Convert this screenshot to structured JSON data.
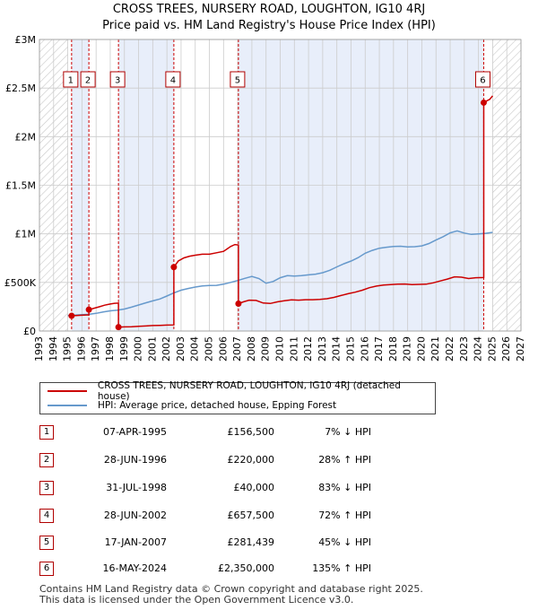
{
  "chart_data": {
    "type": "line",
    "title": "CROSS TREES, NURSERY ROAD, LOUGHTON, IG10 4RJ",
    "subtitle": "Price paid vs. HM Land Registry's House Price Index (HPI)",
    "xlim": [
      1993,
      2027
    ],
    "ylim": [
      0,
      3000000
    ],
    "x_ticks": [
      "1993",
      "1994",
      "1995",
      "1996",
      "1997",
      "1998",
      "1999",
      "2000",
      "2001",
      "2002",
      "2003",
      "2004",
      "2005",
      "2006",
      "2007",
      "2008",
      "2009",
      "2010",
      "2011",
      "2012",
      "2013",
      "2014",
      "2015",
      "2016",
      "2017",
      "2018",
      "2019",
      "2020",
      "2021",
      "2022",
      "2023",
      "2024",
      "2025",
      "2026",
      "2027"
    ],
    "y_ticks": [
      {
        "value": 0,
        "label": "£0"
      },
      {
        "value": 500000,
        "label": "£500K"
      },
      {
        "value": 1000000,
        "label": "£1M"
      },
      {
        "value": 1500000,
        "label": "£1.5M"
      },
      {
        "value": 2000000,
        "label": "£2M"
      },
      {
        "value": 2500000,
        "label": "£2.5M"
      },
      {
        "value": 3000000,
        "label": "£3M"
      }
    ],
    "grid": true,
    "hatched_before": 1995.0,
    "hatched_after": 2025.0,
    "series": [
      {
        "name": "CROSS TREES, NURSERY ROAD, LOUGHTON, IG10 4RJ (detached house)",
        "color": "#cc0000",
        "points": [
          [
            1995.27,
            156500
          ],
          [
            1995.6,
            160000
          ],
          [
            1996.0,
            162000
          ],
          [
            1996.3,
            165000
          ],
          [
            1996.49,
            165000
          ],
          [
            1996.49,
            220000
          ],
          [
            1996.8,
            232000
          ],
          [
            1997.2,
            248000
          ],
          [
            1997.6,
            266000
          ],
          [
            1998.0,
            278000
          ],
          [
            1998.3,
            285000
          ],
          [
            1998.58,
            287000
          ],
          [
            1998.58,
            40000
          ],
          [
            1999.0,
            42000
          ],
          [
            1999.5,
            44000
          ],
          [
            2000.0,
            48000
          ],
          [
            2000.5,
            52000
          ],
          [
            2001.0,
            56000
          ],
          [
            2001.5,
            58000
          ],
          [
            2002.0,
            61000
          ],
          [
            2002.49,
            63000
          ],
          [
            2002.49,
            657500
          ],
          [
            2002.8,
            720000
          ],
          [
            2003.2,
            752000
          ],
          [
            2003.6,
            770000
          ],
          [
            2004.0,
            780000
          ],
          [
            2004.5,
            790000
          ],
          [
            2005.0,
            790000
          ],
          [
            2005.5,
            805000
          ],
          [
            2006.0,
            820000
          ],
          [
            2006.5,
            870000
          ],
          [
            2006.8,
            890000
          ],
          [
            2007.05,
            885000
          ],
          [
            2007.05,
            281439
          ],
          [
            2007.4,
            300000
          ],
          [
            2007.8,
            318000
          ],
          [
            2008.3,
            315000
          ],
          [
            2008.8,
            288000
          ],
          [
            2009.3,
            283000
          ],
          [
            2009.8,
            300000
          ],
          [
            2010.3,
            312000
          ],
          [
            2010.8,
            320000
          ],
          [
            2011.3,
            318000
          ],
          [
            2011.8,
            322000
          ],
          [
            2012.3,
            322000
          ],
          [
            2012.8,
            326000
          ],
          [
            2013.3,
            332000
          ],
          [
            2013.8,
            346000
          ],
          [
            2014.3,
            366000
          ],
          [
            2014.8,
            384000
          ],
          [
            2015.3,
            400000
          ],
          [
            2015.8,
            420000
          ],
          [
            2016.3,
            446000
          ],
          [
            2016.8,
            462000
          ],
          [
            2017.3,
            473000
          ],
          [
            2017.8,
            478000
          ],
          [
            2018.3,
            482000
          ],
          [
            2018.8,
            484000
          ],
          [
            2019.3,
            478000
          ],
          [
            2019.8,
            480000
          ],
          [
            2020.3,
            482000
          ],
          [
            2020.8,
            496000
          ],
          [
            2021.3,
            515000
          ],
          [
            2021.8,
            534000
          ],
          [
            2022.3,
            558000
          ],
          [
            2022.8,
            554000
          ],
          [
            2023.3,
            540000
          ],
          [
            2023.8,
            548000
          ],
          [
            2024.37,
            550000
          ],
          [
            2024.37,
            2350000
          ],
          [
            2024.6,
            2370000
          ],
          [
            2024.8,
            2385000
          ],
          [
            2025.0,
            2420000
          ]
        ]
      },
      {
        "name": "HPI: Average price, detached house, Epping Forest",
        "color": "#6699cc",
        "points": [
          [
            1995.0,
            160000
          ],
          [
            1995.5,
            163000
          ],
          [
            1996.0,
            168000
          ],
          [
            1996.5,
            172000
          ],
          [
            1997.0,
            182000
          ],
          [
            1997.5,
            196000
          ],
          [
            1998.0,
            208000
          ],
          [
            1998.5,
            215000
          ],
          [
            1999.0,
            226000
          ],
          [
            1999.5,
            246000
          ],
          [
            2000.0,
            268000
          ],
          [
            2000.5,
            290000
          ],
          [
            2001.0,
            310000
          ],
          [
            2001.5,
            330000
          ],
          [
            2002.0,
            360000
          ],
          [
            2002.5,
            392000
          ],
          [
            2003.0,
            420000
          ],
          [
            2003.5,
            438000
          ],
          [
            2004.0,
            452000
          ],
          [
            2004.5,
            464000
          ],
          [
            2005.0,
            468000
          ],
          [
            2005.5,
            470000
          ],
          [
            2006.0,
            482000
          ],
          [
            2006.5,
            500000
          ],
          [
            2007.0,
            520000
          ],
          [
            2007.5,
            542000
          ],
          [
            2008.0,
            562000
          ],
          [
            2008.5,
            540000
          ],
          [
            2009.0,
            492000
          ],
          [
            2009.5,
            510000
          ],
          [
            2010.0,
            548000
          ],
          [
            2010.5,
            570000
          ],
          [
            2011.0,
            566000
          ],
          [
            2011.5,
            570000
          ],
          [
            2012.0,
            578000
          ],
          [
            2012.5,
            585000
          ],
          [
            2013.0,
            600000
          ],
          [
            2013.5,
            625000
          ],
          [
            2014.0,
            660000
          ],
          [
            2014.5,
            692000
          ],
          [
            2015.0,
            720000
          ],
          [
            2015.5,
            755000
          ],
          [
            2016.0,
            800000
          ],
          [
            2016.5,
            830000
          ],
          [
            2017.0,
            852000
          ],
          [
            2017.5,
            862000
          ],
          [
            2018.0,
            870000
          ],
          [
            2018.5,
            872000
          ],
          [
            2019.0,
            866000
          ],
          [
            2019.5,
            868000
          ],
          [
            2020.0,
            876000
          ],
          [
            2020.5,
            900000
          ],
          [
            2021.0,
            936000
          ],
          [
            2021.5,
            970000
          ],
          [
            2022.0,
            1010000
          ],
          [
            2022.5,
            1030000
          ],
          [
            2023.0,
            1008000
          ],
          [
            2023.5,
            994000
          ],
          [
            2024.0,
            1000000
          ],
          [
            2024.5,
            1005000
          ],
          [
            2025.0,
            1015000
          ]
        ]
      }
    ],
    "sales": [
      {
        "label": "1",
        "x": 1995.27,
        "y": 156500,
        "date": "07-APR-1995",
        "price": "£156,500",
        "hpi": "7% ↓ HPI"
      },
      {
        "label": "2",
        "x": 1996.49,
        "y": 220000,
        "date": "28-JUN-1996",
        "price": "£220,000",
        "hpi": "28% ↑ HPI"
      },
      {
        "label": "3",
        "x": 1998.58,
        "y": 40000,
        "date": "31-JUL-1998",
        "price": "£40,000",
        "hpi": "83% ↓ HPI"
      },
      {
        "label": "4",
        "x": 2002.49,
        "y": 657500,
        "date": "28-JUN-2002",
        "price": "£657,500",
        "hpi": "72% ↑ HPI"
      },
      {
        "label": "5",
        "x": 2007.05,
        "y": 281439,
        "date": "17-JAN-2007",
        "price": "£281,439",
        "hpi": "45% ↓ HPI"
      },
      {
        "label": "6",
        "x": 2024.37,
        "y": 2350000,
        "date": "16-MAY-2024",
        "price": "£2,350,000",
        "hpi": "135% ↑ HPI"
      }
    ],
    "shaded_spans": [
      [
        1995.27,
        1996.49
      ],
      [
        1998.58,
        2002.49
      ],
      [
        2007.05,
        2024.37
      ]
    ]
  },
  "legend": {
    "property": "CROSS TREES, NURSERY ROAD, LOUGHTON, IG10 4RJ (detached house)",
    "hpi": "HPI: Average price, detached house, Epping Forest"
  },
  "footer": {
    "line1": "Contains HM Land Registry data © Crown copyright and database right 2025.",
    "line2": "This data is licensed under the Open Government Licence v3.0."
  },
  "colors": {
    "property": "#cc0000",
    "hpi": "#6699cc",
    "span": "#e8eefa",
    "grid": "#cccccc"
  }
}
